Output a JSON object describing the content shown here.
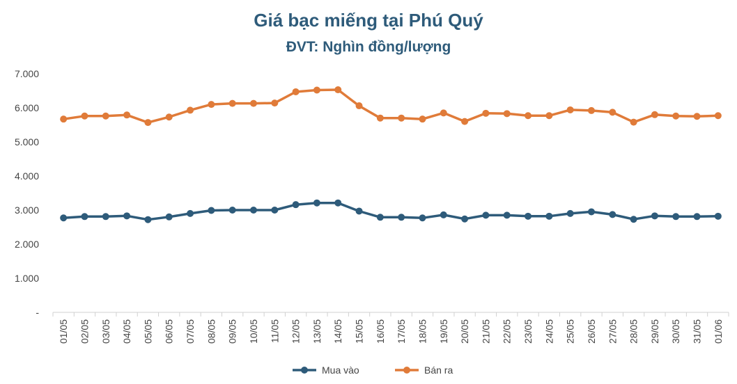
{
  "chart_data": {
    "type": "line",
    "title": "Giá bạc miếng tại Phú Quý",
    "subtitle": "ĐVT: Nghìn đồng/lượng",
    "categories": [
      "01/05",
      "02/05",
      "03/05",
      "04/05",
      "05/05",
      "06/05",
      "07/05",
      "08/05",
      "09/05",
      "10/05",
      "11/05",
      "12/05",
      "13/05",
      "14/05",
      "15/05",
      "16/05",
      "17/05",
      "18/05",
      "19/05",
      "20/05",
      "21/05",
      "22/05",
      "23/05",
      "24/05",
      "25/05",
      "26/05",
      "27/05",
      "28/05",
      "29/05",
      "30/05",
      "31/05",
      "01/06"
    ],
    "series": [
      {
        "name": "Mua vào",
        "color": "#2e5b7a",
        "values": [
          2770,
          2810,
          2810,
          2830,
          2720,
          2800,
          2900,
          2990,
          3000,
          3000,
          3000,
          3160,
          3210,
          3210,
          2970,
          2790,
          2790,
          2770,
          2860,
          2740,
          2850,
          2850,
          2820,
          2820,
          2900,
          2950,
          2870,
          2730,
          2830,
          2810,
          2810,
          2820
        ]
      },
      {
        "name": "Bán ra",
        "color": "#e07b39",
        "values": [
          5670,
          5760,
          5760,
          5790,
          5570,
          5730,
          5930,
          6100,
          6130,
          6130,
          6140,
          6470,
          6520,
          6530,
          6060,
          5700,
          5700,
          5670,
          5850,
          5600,
          5840,
          5830,
          5770,
          5770,
          5940,
          5920,
          5870,
          5580,
          5800,
          5760,
          5750,
          5770
        ]
      }
    ],
    "ylim": [
      0,
      7000
    ],
    "yticks": [
      {
        "value": 0,
        "label": "-"
      },
      {
        "value": 1000,
        "label": "1.000"
      },
      {
        "value": 2000,
        "label": "2.000"
      },
      {
        "value": 3000,
        "label": "3.000"
      },
      {
        "value": 4000,
        "label": "4.000"
      },
      {
        "value": 5000,
        "label": "5.000"
      },
      {
        "value": 6000,
        "label": "6.000"
      },
      {
        "value": 7000,
        "label": "7.000"
      }
    ],
    "grid": false,
    "legend": "bottom"
  }
}
